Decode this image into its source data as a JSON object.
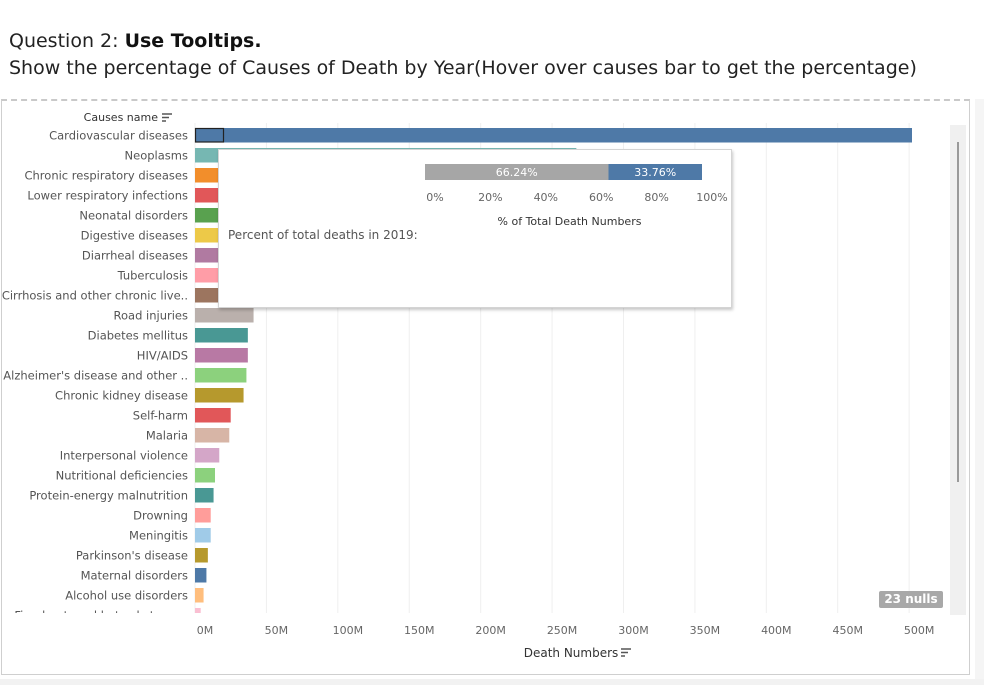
{
  "header": {
    "question_prefix": "Question 2: ",
    "question_title": "Use Tooltips.",
    "instruction": "Show the percentage of Causes of Death by Year(Hover over causes bar to get the percentage)"
  },
  "chart_data": {
    "type": "bar",
    "orientation": "horizontal",
    "ylabel": "Causes name",
    "xlabel": "Death Numbers",
    "xlim": [
      0,
      520
    ],
    "x_ticks": [
      "0M",
      "50M",
      "100M",
      "150M",
      "200M",
      "250M",
      "300M",
      "350M",
      "400M",
      "450M",
      "500M"
    ],
    "categories": [
      "Cardiovascular diseases",
      "Neoplasms",
      "Chronic respiratory diseases",
      "Lower respiratory infections",
      "Neonatal disorders",
      "Digestive diseases",
      "Diarrheal diseases",
      "Tuberculosis",
      "Cirrhosis and other chronic live..",
      "Road injuries",
      "Diabetes mellitus",
      "HIV/AIDS",
      "Alzheimer's disease and other ..",
      "Chronic kidney disease",
      "Self-harm",
      "Malaria",
      "Interpersonal violence",
      "Nutritional deficiencies",
      "Protein-energy malnutrition",
      "Drowning",
      "Meningitis",
      "Parkinson's disease",
      "Maternal disorders",
      "Alcohol use disorders",
      "Fire, heat, and hot substances"
    ],
    "values": [
      502,
      267,
      120,
      106,
      95,
      78,
      66,
      53,
      45,
      41,
      37,
      37,
      36,
      34,
      25,
      24,
      17,
      14,
      13,
      11,
      11,
      9,
      8,
      6,
      4
    ],
    "colors": [
      "#4e79a7",
      "#76b7b2",
      "#f28e2b",
      "#e15759",
      "#59a14f",
      "#edc948",
      "#b07aa1",
      "#ff9da7",
      "#9c755f",
      "#bab0ac",
      "#499894",
      "#b879a4",
      "#8cd17d",
      "#b6992d",
      "#e15759",
      "#d7b5a6",
      "#d4a6c8",
      "#8cd17d",
      "#499894",
      "#ff9d9a",
      "#a0cbe8",
      "#b6992d",
      "#4e79a7",
      "#ffbe7d",
      "#fabfd2"
    ],
    "null_badge": "23 nulls",
    "tooltip": {
      "label": "Percent of total deaths in 2019:",
      "stacked_bar": {
        "segments": [
          {
            "value": 66.24,
            "label": "66.24%",
            "color": "#a6a6a6"
          },
          {
            "value": 33.76,
            "label": "33.76%",
            "color": "#4e79a7"
          }
        ],
        "x_ticks": [
          "0%",
          "20%",
          "40%",
          "60%",
          "80%",
          "100%"
        ],
        "xlabel": "% of Total Death Numbers"
      }
    }
  }
}
